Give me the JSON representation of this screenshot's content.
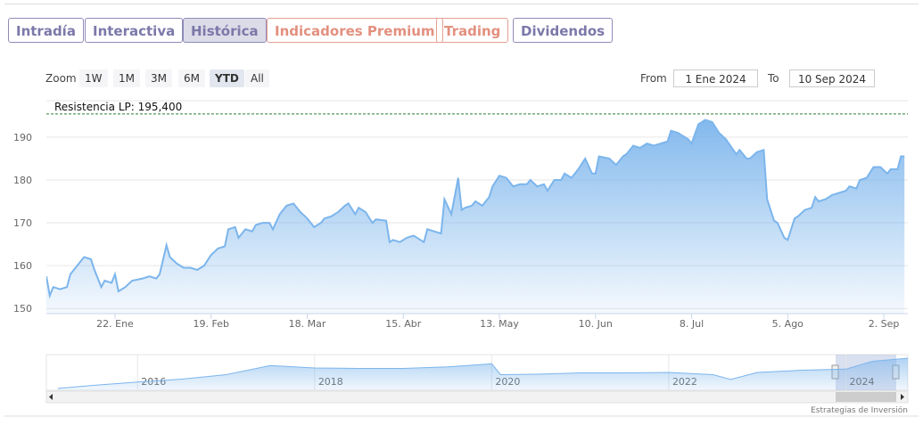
{
  "tabs": [
    "Intradía",
    "Interactiva",
    "Histórica",
    "Indicadores Premium",
    "Trading",
    "Dividendos"
  ],
  "zoom": {
    "label": "Zoom",
    "buttons": [
      "1W",
      "1M",
      "3M",
      "6M",
      "YTD",
      "All"
    ],
    "selected": "YTD"
  },
  "range": {
    "from_label": "From",
    "from": "1 Ene 2024",
    "to_label": "To",
    "to": "10 Sep 2024"
  },
  "credit": "Estrategias de Inversión",
  "chart_data": [
    {
      "type": "area",
      "color": "#7cb5ec",
      "x": [
        2,
        3,
        4,
        6,
        8,
        9,
        11,
        13,
        15,
        16,
        18,
        19,
        21,
        22,
        23,
        25,
        27,
        30,
        32,
        34,
        35,
        37,
        38,
        40,
        42,
        44,
        46,
        48,
        50,
        52,
        54,
        55,
        57,
        58,
        60,
        62,
        63,
        65,
        67,
        68,
        70,
        72,
        74,
        76,
        78,
        80,
        82,
        83,
        85,
        87,
        89,
        90,
        92,
        93,
        95,
        97,
        98,
        101,
        102,
        103,
        105,
        107,
        109,
        111,
        112,
        113,
        115,
        117,
        118,
        120,
        122,
        123,
        124,
        126,
        127,
        129,
        131,
        132,
        134,
        136,
        138,
        140,
        142,
        143,
        145,
        147,
        148,
        150,
        152,
        153,
        155,
        157,
        159,
        161,
        162,
        163,
        166,
        168,
        170,
        171,
        173,
        175,
        177,
        179,
        181,
        183,
        184,
        186,
        189,
        190,
        192,
        194,
        196,
        198,
        200,
        203,
        204,
        206,
        207,
        209,
        211,
        212,
        214,
        215,
        217,
        218,
        220,
        221,
        223,
        225,
        226,
        227,
        229,
        231,
        233,
        235,
        236,
        238,
        239,
        241,
        243,
        245,
        247,
        248,
        250,
        251,
        252
      ],
      "values": [
        157.5,
        153,
        155,
        154.5,
        155,
        158,
        160,
        162,
        161.5,
        159,
        155,
        156.5,
        156,
        158,
        154,
        155,
        156.5,
        157,
        157.5,
        157,
        158,
        164.8,
        162,
        160.5,
        159.5,
        159.5,
        159,
        160,
        162.5,
        164,
        164.5,
        168.5,
        169,
        166.5,
        168.5,
        168,
        169.5,
        170,
        170,
        168.5,
        172,
        174,
        174.5,
        172.5,
        171,
        169,
        170,
        171,
        171.5,
        172.5,
        174,
        174.5,
        172,
        173.5,
        172.5,
        170,
        170.8,
        170.5,
        165.5,
        166,
        165.5,
        166.5,
        167,
        166,
        165.5,
        168.5,
        168,
        167.5,
        175.5,
        172,
        180.5,
        173,
        173.5,
        174,
        175,
        174,
        176,
        178.5,
        181,
        180.5,
        178.5,
        179,
        179,
        180,
        178.5,
        179,
        177.5,
        180,
        180,
        181.5,
        180.5,
        182.5,
        185,
        181.5,
        181.5,
        185.5,
        185,
        183.5,
        185.5,
        186,
        188,
        187.5,
        188.5,
        188,
        188.5,
        189,
        191.5,
        191,
        189.5,
        188.5,
        193,
        194,
        193.5,
        191,
        189.5,
        186,
        187,
        185,
        185,
        186.5,
        187,
        175.5,
        170.5,
        170,
        166.5,
        166,
        171,
        171.5,
        173,
        173.5,
        176,
        175,
        175.5,
        176.5,
        177,
        177.5,
        178.5,
        178,
        180,
        180.5,
        183,
        183,
        181.5,
        182.5,
        182.5,
        185.5,
        185.5
      ],
      "xlim": [
        2,
        253
      ],
      "xticks": [
        {
          "value": 22,
          "label": "22. Ene"
        },
        {
          "value": 50,
          "label": "19. Feb"
        },
        {
          "value": 78,
          "label": "18. Mar"
        },
        {
          "value": 106,
          "label": "15. Abr"
        },
        {
          "value": 134,
          "label": "13. May"
        },
        {
          "value": 162,
          "label": "10. Jun"
        },
        {
          "value": 190,
          "label": "8. Jul"
        },
        {
          "value": 218,
          "label": "5. Ago"
        },
        {
          "value": 246,
          "label": "2. Sep"
        }
      ],
      "ylim": [
        148.8,
        198.5
      ],
      "yticks": [
        150,
        160,
        170,
        180,
        190
      ],
      "grid": true,
      "annotations": [
        {
          "label": "Resistencia LP: 195,400",
          "value": 195.4
        }
      ]
    },
    {
      "type": "area",
      "color": "#7cb5ec",
      "x": [
        2015.1,
        2015.5,
        2016,
        2016.5,
        2017,
        2017.5,
        2018,
        2018.5,
        2019,
        2019.5,
        2020,
        2020.1,
        2020.5,
        2021,
        2021.5,
        2022,
        2022.5,
        2022.7,
        2023,
        2023.5,
        2024,
        2024.3,
        2024.7
      ],
      "values": [
        48,
        62,
        77,
        90,
        110,
        151,
        140,
        138,
        138,
        145,
        159,
        110,
        112,
        118,
        118,
        120,
        110,
        89,
        120,
        130,
        135,
        170,
        184
      ],
      "xlim": [
        2014.97,
        2024.7
      ],
      "xticks": [
        {
          "value": 2016,
          "label": "2016"
        },
        {
          "value": 2018,
          "label": "2018"
        },
        {
          "value": 2020,
          "label": "2020"
        },
        {
          "value": 2022,
          "label": "2022"
        },
        {
          "value": 2024,
          "label": "2024"
        }
      ],
      "ylim": [
        40,
        200
      ],
      "grid": true
    }
  ]
}
